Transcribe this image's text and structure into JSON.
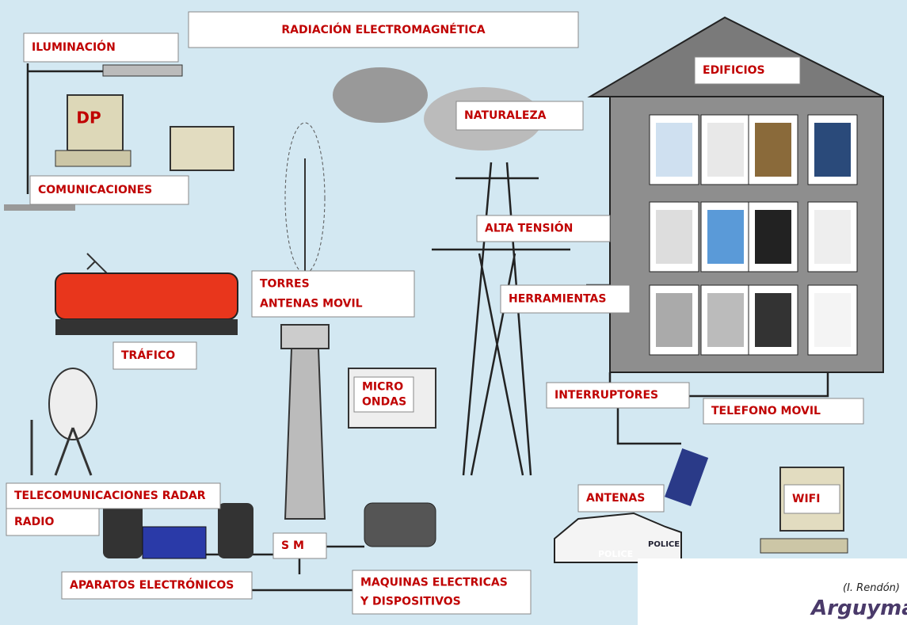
{
  "header": {
    "title": "RADIACIÓN ELECTROMAGNÉTICA"
  },
  "labels": {
    "iluminacion": [
      "ILUMINACIÓN"
    ],
    "comunicaciones": [
      "COMUNICACIONES"
    ],
    "trafico": [
      "TRÁFICO"
    ],
    "telecom": [
      "TELECOMUNICACIONES RADAR"
    ],
    "radio": [
      "RADIO"
    ],
    "aparatos": [
      "APARATOS ELECTRÓNICOS"
    ],
    "torres": [
      "TORRES",
      "ANTENAS MOVIL"
    ],
    "micro": [
      "MICRO",
      "ONDAS"
    ],
    "sm": [
      "S M"
    ],
    "maquinas": [
      "MAQUINAS ELECTRICAS",
      "Y DISPOSITIVOS"
    ],
    "naturaleza": [
      "NATURALEZA"
    ],
    "alta": [
      "ALTA TENSIÓN"
    ],
    "herramientas": [
      "HERRAMIENTAS"
    ],
    "edificios": [
      "EDIFICIOS"
    ],
    "interruptores": [
      "INTERRUPTORES"
    ],
    "telefono": [
      "TELEFONO MOVIL"
    ],
    "antenas": [
      "ANTENAS"
    ],
    "wifi": [
      "WIFI"
    ]
  },
  "computer_label": "DP",
  "police": [
    "POLICE",
    "POLICE"
  ],
  "credit": "(I. Rendón)",
  "brand": "Arguyma"
}
